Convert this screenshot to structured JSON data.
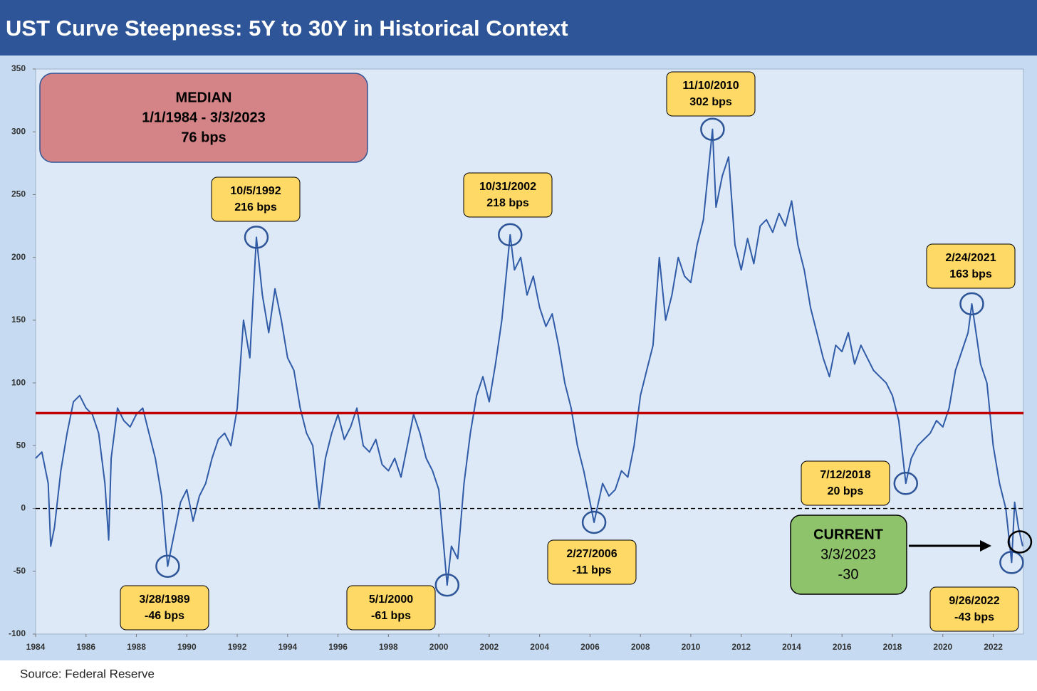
{
  "chart_data": {
    "type": "line",
    "title": "UST Curve Steepness: 5Y to 30Y in Historical Context",
    "source": "Source: Federal Reserve",
    "color": "#2f5ba7",
    "xlim": [
      1984,
      2023.2
    ],
    "xticks": [
      1984,
      1986,
      1988,
      1990,
      1992,
      1994,
      1996,
      1998,
      2000,
      2002,
      2004,
      2006,
      2008,
      2010,
      2012,
      2014,
      2016,
      2018,
      2020,
      2022
    ],
    "ylim": [
      -100,
      350
    ],
    "yticks": [
      350,
      300,
      250,
      200,
      150,
      100,
      50,
      0,
      -50,
      -100
    ],
    "x": [
      1984.0,
      1984.25,
      1984.5,
      1984.6,
      1984.75,
      1985.0,
      1985.25,
      1985.5,
      1985.75,
      1986.0,
      1986.25,
      1986.5,
      1986.75,
      1986.9,
      1987.0,
      1987.25,
      1987.5,
      1987.75,
      1988.0,
      1988.25,
      1988.5,
      1988.75,
      1989.0,
      1989.24,
      1989.5,
      1989.75,
      1990.0,
      1990.25,
      1990.5,
      1990.75,
      1991.0,
      1991.25,
      1991.5,
      1991.75,
      1992.0,
      1992.25,
      1992.5,
      1992.76,
      1993.0,
      1993.25,
      1993.5,
      1993.75,
      1994.0,
      1994.25,
      1994.5,
      1994.75,
      1995.0,
      1995.25,
      1995.5,
      1995.75,
      1996.0,
      1996.25,
      1996.5,
      1996.75,
      1997.0,
      1997.25,
      1997.5,
      1997.75,
      1998.0,
      1998.25,
      1998.5,
      1998.75,
      1999.0,
      1999.25,
      1999.5,
      1999.75,
      2000.0,
      2000.33,
      2000.5,
      2000.75,
      2001.0,
      2001.25,
      2001.5,
      2001.75,
      2002.0,
      2002.25,
      2002.5,
      2002.83,
      2003.0,
      2003.25,
      2003.5,
      2003.75,
      2004.0,
      2004.25,
      2004.5,
      2004.75,
      2005.0,
      2005.25,
      2005.5,
      2005.75,
      2006.16,
      2006.5,
      2006.75,
      2007.0,
      2007.25,
      2007.5,
      2007.75,
      2008.0,
      2008.25,
      2008.5,
      2008.75,
      2009.0,
      2009.25,
      2009.5,
      2009.75,
      2010.0,
      2010.25,
      2010.5,
      2010.86,
      2011.0,
      2011.25,
      2011.5,
      2011.75,
      2012.0,
      2012.25,
      2012.5,
      2012.75,
      2013.0,
      2013.25,
      2013.5,
      2013.75,
      2014.0,
      2014.25,
      2014.5,
      2014.75,
      2015.0,
      2015.25,
      2015.5,
      2015.75,
      2016.0,
      2016.25,
      2016.5,
      2016.75,
      2017.0,
      2017.25,
      2017.5,
      2017.75,
      2018.0,
      2018.25,
      2018.53,
      2018.75,
      2019.0,
      2019.25,
      2019.5,
      2019.75,
      2020.0,
      2020.25,
      2020.5,
      2020.75,
      2021.0,
      2021.15,
      2021.5,
      2021.75,
      2022.0,
      2022.25,
      2022.5,
      2022.73,
      2022.85,
      2023.0,
      2023.17
    ],
    "values": [
      40,
      45,
      20,
      -30,
      -15,
      30,
      60,
      85,
      90,
      80,
      75,
      60,
      20,
      -25,
      40,
      80,
      70,
      65,
      75,
      80,
      60,
      40,
      10,
      -46,
      -20,
      5,
      15,
      -10,
      10,
      20,
      40,
      55,
      60,
      50,
      80,
      150,
      120,
      216,
      170,
      140,
      175,
      150,
      120,
      110,
      80,
      60,
      50,
      0,
      40,
      60,
      75,
      55,
      65,
      80,
      50,
      45,
      55,
      35,
      30,
      40,
      25,
      50,
      75,
      60,
      40,
      30,
      15,
      -61,
      -30,
      -40,
      20,
      60,
      90,
      105,
      85,
      115,
      150,
      218,
      190,
      200,
      170,
      185,
      160,
      145,
      155,
      130,
      100,
      80,
      50,
      30,
      -11,
      20,
      10,
      15,
      30,
      25,
      50,
      90,
      110,
      130,
      200,
      150,
      170,
      200,
      185,
      180,
      210,
      230,
      302,
      240,
      265,
      280,
      210,
      190,
      215,
      195,
      225,
      230,
      220,
      235,
      225,
      245,
      210,
      190,
      160,
      140,
      120,
      105,
      130,
      125,
      140,
      115,
      130,
      120,
      110,
      105,
      100,
      90,
      70,
      20,
      40,
      50,
      55,
      60,
      70,
      65,
      80,
      110,
      125,
      140,
      163,
      115,
      100,
      50,
      20,
      0,
      -43,
      5,
      -15,
      -30
    ],
    "reference_lines": [
      {
        "value": 76,
        "color": "#c00000",
        "style": "solid"
      },
      {
        "value": 0,
        "color": "#000000",
        "style": "dashed"
      }
    ],
    "median_box": [
      "MEDIAN",
      "1/1/1984 - 3/3/2023",
      "76 bps"
    ],
    "current_box": {
      "lines": [
        "CURRENT",
        "3/3/2023",
        "-30"
      ],
      "x": 2023.17,
      "y": -30
    },
    "annotations": [
      {
        "x": 1992.76,
        "y": 216,
        "label": [
          "10/5/1992",
          "216 bps"
        ]
      },
      {
        "x": 2002.83,
        "y": 218,
        "label": [
          "10/31/2002",
          "218 bps"
        ]
      },
      {
        "x": 2010.86,
        "y": 302,
        "label": [
          "11/10/2010",
          "302 bps"
        ]
      },
      {
        "x": 2021.15,
        "y": 163,
        "label": [
          "2/24/2021",
          "163 bps"
        ]
      },
      {
        "x": 1989.24,
        "y": -46,
        "label": [
          "3/28/1989",
          "-46 bps"
        ]
      },
      {
        "x": 2000.33,
        "y": -61,
        "label": [
          "5/1/2000",
          "-61 bps"
        ]
      },
      {
        "x": 2006.16,
        "y": -11,
        "label": [
          "2/27/2006",
          "-11 bps"
        ]
      },
      {
        "x": 2018.53,
        "y": 20,
        "label": [
          "7/12/2018",
          "20 bps"
        ]
      },
      {
        "x": 2022.73,
        "y": -43,
        "label": [
          "9/26/2022",
          "-43 bps"
        ]
      }
    ]
  }
}
